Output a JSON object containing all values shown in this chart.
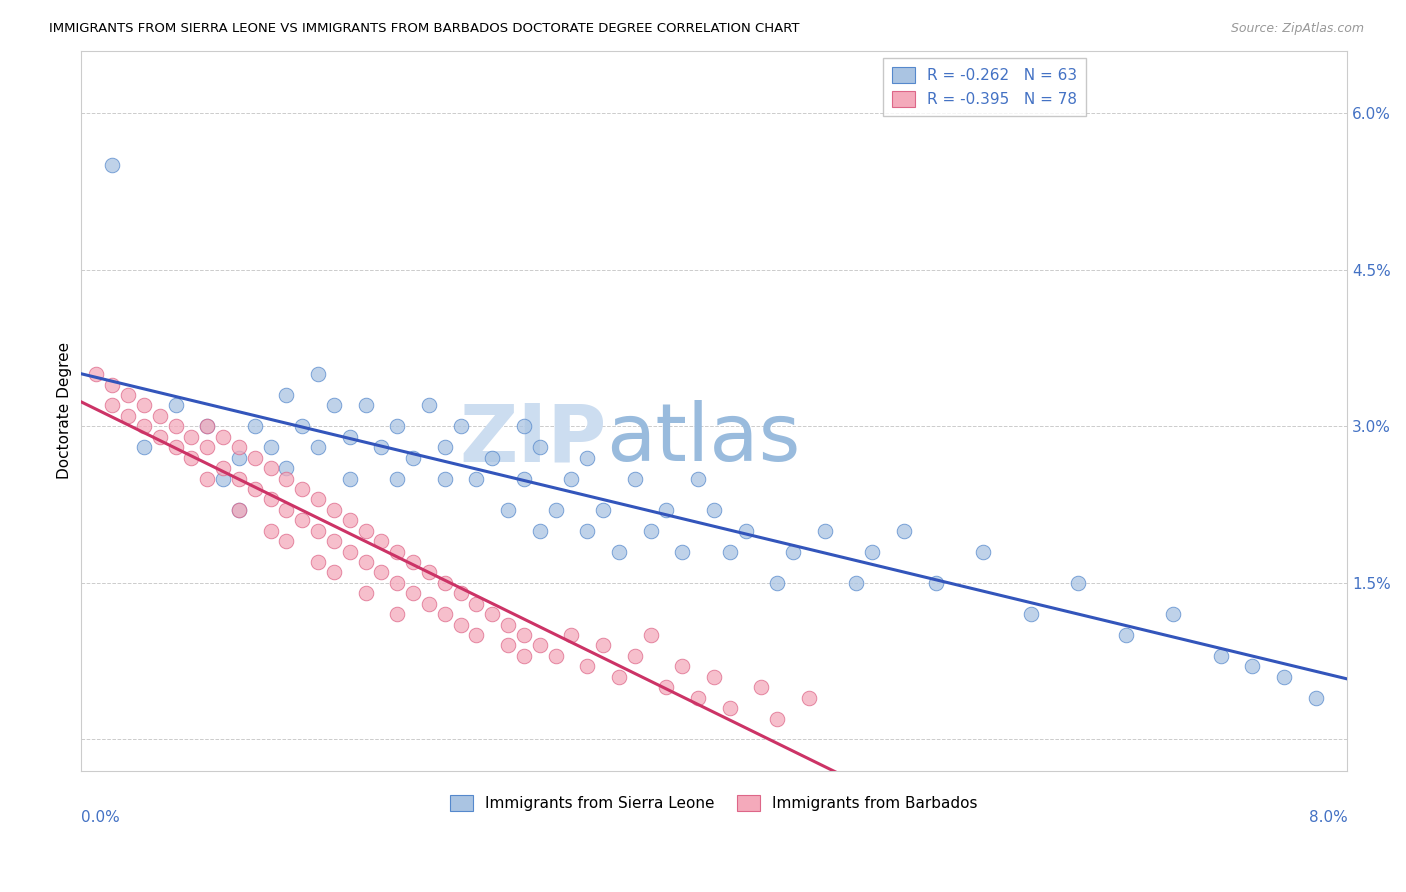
{
  "title": "IMMIGRANTS FROM SIERRA LEONE VS IMMIGRANTS FROM BARBADOS DOCTORATE DEGREE CORRELATION CHART",
  "source": "Source: ZipAtlas.com",
  "ylabel": "Doctorate Degree",
  "right_yticklabels": [
    "",
    "1.5%",
    "3.0%",
    "4.5%",
    "6.0%"
  ],
  "right_ytick_vals": [
    0.0,
    0.015,
    0.03,
    0.045,
    0.06
  ],
  "xmin": 0.0,
  "xmax": 0.08,
  "ymin": -0.003,
  "ymax": 0.066,
  "sierra_leone_color": "#aac4e2",
  "sierra_leone_edge": "#5588cc",
  "sierra_leone_alpha": 0.75,
  "barbados_color": "#f4aabb",
  "barbados_edge": "#dd6688",
  "barbados_alpha": 0.75,
  "trend_sierra_color": "#3355bb",
  "trend_barbados_color": "#cc3366",
  "trend_linewidth": 2.2,
  "legend_color": "#4472c4",
  "sierra_R": -0.262,
  "sierra_N": 63,
  "barbados_R": -0.395,
  "barbados_N": 78,
  "scatter_size": 110,
  "watermark_zip": "ZIP",
  "watermark_atlas": "atlas",
  "watermark_color_zip": "#ccddf0",
  "watermark_color_atlas": "#99bbdd",
  "background_color": "#ffffff",
  "grid_color": "#cccccc",
  "grid_linestyle": "--",
  "grid_linewidth": 0.7,
  "sierra_x": [
    0.002,
    0.004,
    0.006,
    0.008,
    0.009,
    0.01,
    0.01,
    0.011,
    0.012,
    0.013,
    0.013,
    0.014,
    0.015,
    0.015,
    0.016,
    0.017,
    0.017,
    0.018,
    0.019,
    0.02,
    0.02,
    0.021,
    0.022,
    0.023,
    0.023,
    0.024,
    0.025,
    0.026,
    0.027,
    0.028,
    0.028,
    0.029,
    0.029,
    0.03,
    0.031,
    0.032,
    0.032,
    0.033,
    0.034,
    0.035,
    0.036,
    0.037,
    0.038,
    0.039,
    0.04,
    0.041,
    0.042,
    0.044,
    0.045,
    0.047,
    0.049,
    0.05,
    0.052,
    0.054,
    0.057,
    0.06,
    0.063,
    0.066,
    0.069,
    0.072,
    0.074,
    0.076,
    0.078
  ],
  "sierra_y": [
    0.055,
    0.028,
    0.032,
    0.03,
    0.025,
    0.027,
    0.022,
    0.03,
    0.028,
    0.033,
    0.026,
    0.03,
    0.035,
    0.028,
    0.032,
    0.025,
    0.029,
    0.032,
    0.028,
    0.025,
    0.03,
    0.027,
    0.032,
    0.025,
    0.028,
    0.03,
    0.025,
    0.027,
    0.022,
    0.03,
    0.025,
    0.02,
    0.028,
    0.022,
    0.025,
    0.02,
    0.027,
    0.022,
    0.018,
    0.025,
    0.02,
    0.022,
    0.018,
    0.025,
    0.022,
    0.018,
    0.02,
    0.015,
    0.018,
    0.02,
    0.015,
    0.018,
    0.02,
    0.015,
    0.018,
    0.012,
    0.015,
    0.01,
    0.012,
    0.008,
    0.007,
    0.006,
    0.004
  ],
  "barbados_x": [
    0.001,
    0.002,
    0.002,
    0.003,
    0.003,
    0.004,
    0.004,
    0.005,
    0.005,
    0.006,
    0.006,
    0.007,
    0.007,
    0.008,
    0.008,
    0.008,
    0.009,
    0.009,
    0.01,
    0.01,
    0.01,
    0.011,
    0.011,
    0.012,
    0.012,
    0.012,
    0.013,
    0.013,
    0.013,
    0.014,
    0.014,
    0.015,
    0.015,
    0.015,
    0.016,
    0.016,
    0.016,
    0.017,
    0.017,
    0.018,
    0.018,
    0.018,
    0.019,
    0.019,
    0.02,
    0.02,
    0.02,
    0.021,
    0.021,
    0.022,
    0.022,
    0.023,
    0.023,
    0.024,
    0.024,
    0.025,
    0.025,
    0.026,
    0.027,
    0.027,
    0.028,
    0.028,
    0.029,
    0.03,
    0.031,
    0.032,
    0.033,
    0.034,
    0.035,
    0.036,
    0.037,
    0.038,
    0.039,
    0.04,
    0.041,
    0.043,
    0.044,
    0.046
  ],
  "barbados_y": [
    0.035,
    0.034,
    0.032,
    0.033,
    0.031,
    0.032,
    0.03,
    0.031,
    0.029,
    0.03,
    0.028,
    0.029,
    0.027,
    0.03,
    0.028,
    0.025,
    0.029,
    0.026,
    0.028,
    0.025,
    0.022,
    0.027,
    0.024,
    0.026,
    0.023,
    0.02,
    0.025,
    0.022,
    0.019,
    0.024,
    0.021,
    0.023,
    0.02,
    0.017,
    0.022,
    0.019,
    0.016,
    0.021,
    0.018,
    0.02,
    0.017,
    0.014,
    0.019,
    0.016,
    0.018,
    0.015,
    0.012,
    0.017,
    0.014,
    0.016,
    0.013,
    0.015,
    0.012,
    0.014,
    0.011,
    0.013,
    0.01,
    0.012,
    0.011,
    0.009,
    0.01,
    0.008,
    0.009,
    0.008,
    0.01,
    0.007,
    0.009,
    0.006,
    0.008,
    0.01,
    0.005,
    0.007,
    0.004,
    0.006,
    0.003,
    0.005,
    0.002,
    0.004
  ]
}
